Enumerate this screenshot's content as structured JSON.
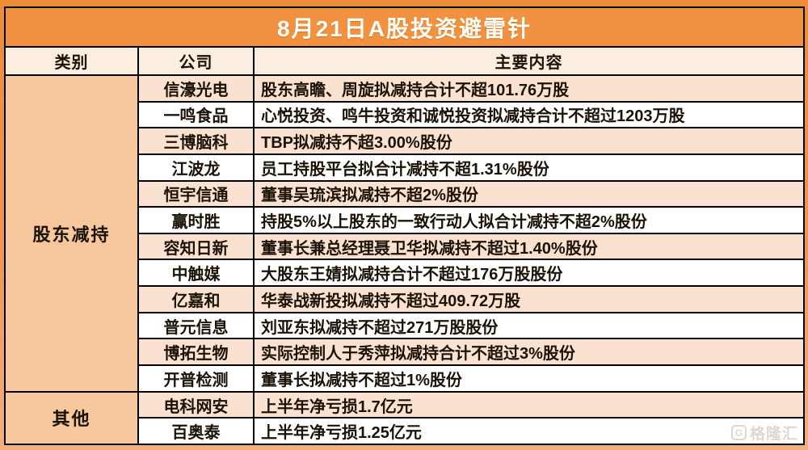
{
  "title": "8月21日A股投资避雷针",
  "headers": {
    "category": "类别",
    "company": "公司",
    "content": "主要内容"
  },
  "groups": [
    {
      "category": "股东减持",
      "rows": [
        {
          "company": "信濠光电",
          "content": "股东高瞻、周旋拟减持合计不超101.76万股"
        },
        {
          "company": "一鸣食品",
          "content": "心悦投资、鸣牛投资和诚悦投资拟减持合计不超过1203万股"
        },
        {
          "company": "三博脑科",
          "content": "TBP拟减持不超3.00%股份"
        },
        {
          "company": "江波龙",
          "content": "员工持股平台拟合计减持不超1.31%股份"
        },
        {
          "company": "恒宇信通",
          "content": "董事吴琉滨拟减持不超2%股份"
        },
        {
          "company": "赢时胜",
          "content": "持股5%以上股东的一致行动人拟合计减持不超2%股份"
        },
        {
          "company": "容知日新",
          "content": "董事长兼总经理聂卫华拟减持不超过1.40%股份"
        },
        {
          "company": "中触媒",
          "content": "大股东王婧拟减持合计不超过176万股股份"
        },
        {
          "company": "亿嘉和",
          "content": "华泰战新投拟减持不超过409.72万股"
        },
        {
          "company": "普元信息",
          "content": "刘亚东拟减持不超过271万股股份"
        },
        {
          "company": "博拓生物",
          "content": "实际控制人于秀萍拟减持合计不超过3%股份"
        },
        {
          "company": "开普检测",
          "content": "董事长拟减持不超过1%股份"
        }
      ]
    },
    {
      "category": "其他",
      "rows": [
        {
          "company": "电科网安",
          "content": "上半年净亏损1.7亿元"
        },
        {
          "company": "百奥泰",
          "content": "上半年净亏损1.25亿元"
        }
      ]
    }
  ],
  "watermark": {
    "logo_letter": "G",
    "brand": "格隆汇"
  },
  "colors": {
    "frame_top": "#EE8B38",
    "frame_bottom": "#F4AF7F",
    "title_bg": "#F0923F",
    "title_text": "#FFFEF8",
    "header_bg": "#FCEDE1",
    "category_bg": "#F7C79D",
    "row_peach": "#FBE2D0",
    "row_white": "#FFFFFF",
    "border": "#000000",
    "text": "#1B1208",
    "watermark": "#D9D4CD"
  }
}
